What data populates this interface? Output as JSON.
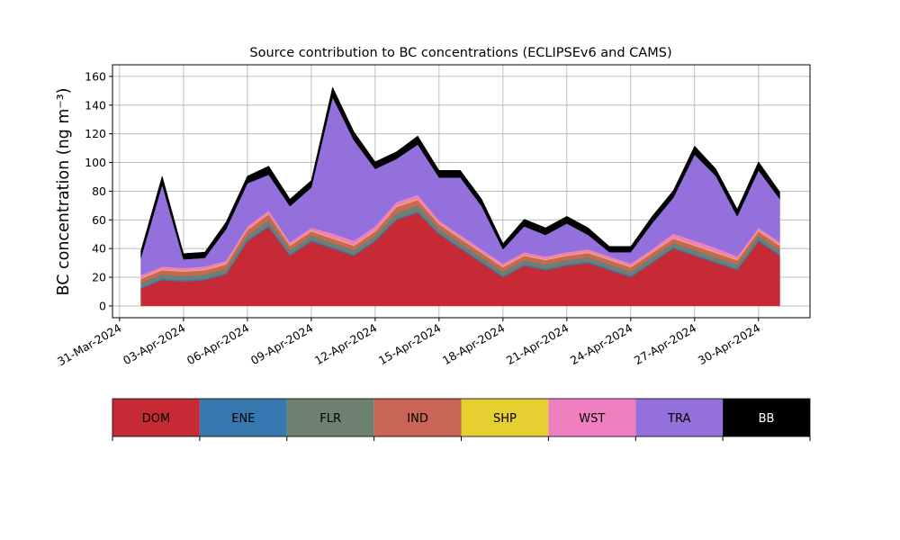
{
  "chart_data": {
    "type": "stacked_area",
    "title": "Source contribution to BC concentrations (ECLIPSEv6 and CAMS)",
    "y_label": "BC concentration (ng m⁻³)",
    "x": [
      "2024-04-01",
      "2024-04-02",
      "2024-04-03",
      "2024-04-04",
      "2024-04-05",
      "2024-04-06",
      "2024-04-07",
      "2024-04-08",
      "2024-04-09",
      "2024-04-10",
      "2024-04-11",
      "2024-04-12",
      "2024-04-13",
      "2024-04-14",
      "2024-04-15",
      "2024-04-16",
      "2024-04-17",
      "2024-04-18",
      "2024-04-19",
      "2024-04-20",
      "2024-04-21",
      "2024-04-22",
      "2024-04-23",
      "2024-04-24",
      "2024-04-25",
      "2024-04-26",
      "2024-04-27",
      "2024-04-28",
      "2024-04-29",
      "2024-04-30",
      "2024-05-01"
    ],
    "series": [
      {
        "name": "DOM",
        "color": "#c52a35",
        "values": [
          12,
          18,
          17,
          18,
          22,
          45,
          55,
          35,
          45,
          40,
          35,
          45,
          60,
          65,
          50,
          40,
          30,
          20,
          28,
          25,
          28,
          30,
          25,
          20,
          30,
          40,
          35,
          30,
          25,
          45,
          35
        ]
      },
      {
        "name": "ENE",
        "color": "#3878b0",
        "values": [
          1,
          1,
          1,
          1,
          1,
          1,
          1,
          1,
          1,
          1,
          1,
          1,
          1,
          1,
          1,
          1,
          1,
          1,
          1,
          1,
          1,
          1,
          1,
          1,
          1,
          1,
          1,
          1,
          1,
          1,
          1
        ]
      },
      {
        "name": "FLR",
        "color": "#6e806f",
        "values": [
          3,
          3,
          3,
          3,
          3,
          3,
          4,
          3,
          3,
          3,
          3,
          3,
          4,
          4,
          3,
          3,
          3,
          3,
          3,
          3,
          3,
          3,
          3,
          3,
          3,
          3,
          3,
          3,
          3,
          3,
          3
        ]
      },
      {
        "name": "IND",
        "color": "#c96656",
        "values": [
          3,
          3,
          3,
          3,
          3,
          4,
          4,
          3,
          3,
          3,
          3,
          3,
          4,
          4,
          3,
          3,
          3,
          3,
          3,
          3,
          3,
          3,
          3,
          3,
          3,
          3,
          3,
          3,
          3,
          3,
          3
        ]
      },
      {
        "name": "SHP",
        "color": "#e6cf30",
        "values": [
          0.5,
          0.5,
          0.5,
          0.5,
          0.5,
          0.5,
          0.5,
          0.5,
          0.5,
          0.5,
          0.5,
          0.5,
          0.5,
          0.5,
          0.5,
          0.5,
          0.5,
          0.5,
          0.5,
          0.5,
          0.5,
          0.5,
          0.5,
          0.5,
          0.5,
          0.5,
          0.5,
          0.5,
          0.5,
          0.5,
          0.5
        ]
      },
      {
        "name": "WST",
        "color": "#f07fbf",
        "values": [
          2,
          2,
          2,
          2,
          2,
          2,
          2,
          2,
          2,
          3,
          3,
          3,
          3,
          3,
          2,
          2,
          2,
          2,
          2,
          2,
          2,
          2,
          2,
          2,
          2,
          3,
          3,
          3,
          2,
          2,
          2
        ]
      },
      {
        "name": "TRA",
        "color": "#9370db",
        "values": [
          12,
          57,
          6,
          6,
          22,
          30,
          25,
          25,
          28,
          95,
          70,
          40,
          30,
          35,
          30,
          40,
          30,
          10,
          18,
          15,
          20,
          10,
          3,
          8,
          18,
          25,
          60,
          50,
          28,
          40,
          30
        ]
      },
      {
        "name": "BB",
        "color": "#000000",
        "values": [
          5,
          6,
          4,
          4,
          5,
          5,
          6,
          5,
          5,
          7,
          6,
          5,
          5,
          6,
          5,
          5,
          5,
          4,
          5,
          5,
          5,
          5,
          4,
          4,
          5,
          5,
          6,
          5,
          5,
          6,
          5
        ]
      }
    ],
    "xlim": [
      "2024-03-30T16:00:00Z",
      "2024-05-02T10:00:00Z"
    ],
    "xticks": [
      {
        "value": "2024-03-31",
        "label": "31-Mar-2024"
      },
      {
        "value": "2024-04-03",
        "label": "03-Apr-2024"
      },
      {
        "value": "2024-04-06",
        "label": "06-Apr-2024"
      },
      {
        "value": "2024-04-09",
        "label": "09-Apr-2024"
      },
      {
        "value": "2024-04-12",
        "label": "12-Apr-2024"
      },
      {
        "value": "2024-04-15",
        "label": "15-Apr-2024"
      },
      {
        "value": "2024-04-18",
        "label": "18-Apr-2024"
      },
      {
        "value": "2024-04-21",
        "label": "21-Apr-2024"
      },
      {
        "value": "2024-04-24",
        "label": "24-Apr-2024"
      },
      {
        "value": "2024-04-27",
        "label": "27-Apr-2024"
      },
      {
        "value": "2024-04-30",
        "label": "30-Apr-2024"
      }
    ],
    "ylim": [
      -8.2,
      168.1
    ],
    "yticks": [
      0,
      20,
      40,
      60,
      80,
      100,
      120,
      140,
      160
    ],
    "grid": true
  }
}
